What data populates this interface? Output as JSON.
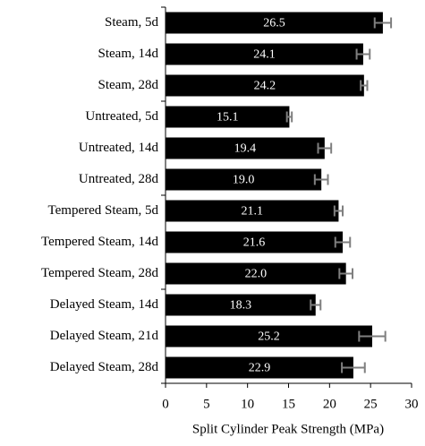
{
  "chart_data": {
    "type": "bar",
    "orientation": "horizontal",
    "categories": [
      "Steam, 5d",
      "Steam, 14d",
      "Steam, 28d",
      "Untreated, 5d",
      "Untreated, 14d",
      "Untreated, 28d",
      "Tempered Steam, 5d",
      "Tempered Steam, 14d",
      "Tempered Steam, 28d",
      "Delayed Steam, 14d",
      "Delayed Steam, 21d",
      "Delayed Steam, 28d"
    ],
    "values": [
      26.5,
      24.1,
      24.2,
      15.1,
      19.4,
      19.0,
      21.1,
      21.6,
      22.0,
      18.3,
      25.2,
      22.9
    ],
    "value_labels": [
      "26.5",
      "24.1",
      "24.2",
      "15.1",
      "19.4",
      "19.0",
      "21.1",
      "21.6",
      "22.0",
      "18.3",
      "25.2",
      "22.9"
    ],
    "errors": [
      1.0,
      0.8,
      0.4,
      0.3,
      0.8,
      0.8,
      0.5,
      0.9,
      0.8,
      0.6,
      1.6,
      1.4
    ],
    "color": "#000000",
    "error_color": "#7f7f7f",
    "xlabel": "Split Cylinder Peak Strength (MPa)",
    "xlim": [
      0,
      30
    ],
    "xticks": [
      0,
      5,
      10,
      15,
      20,
      25,
      30
    ]
  }
}
